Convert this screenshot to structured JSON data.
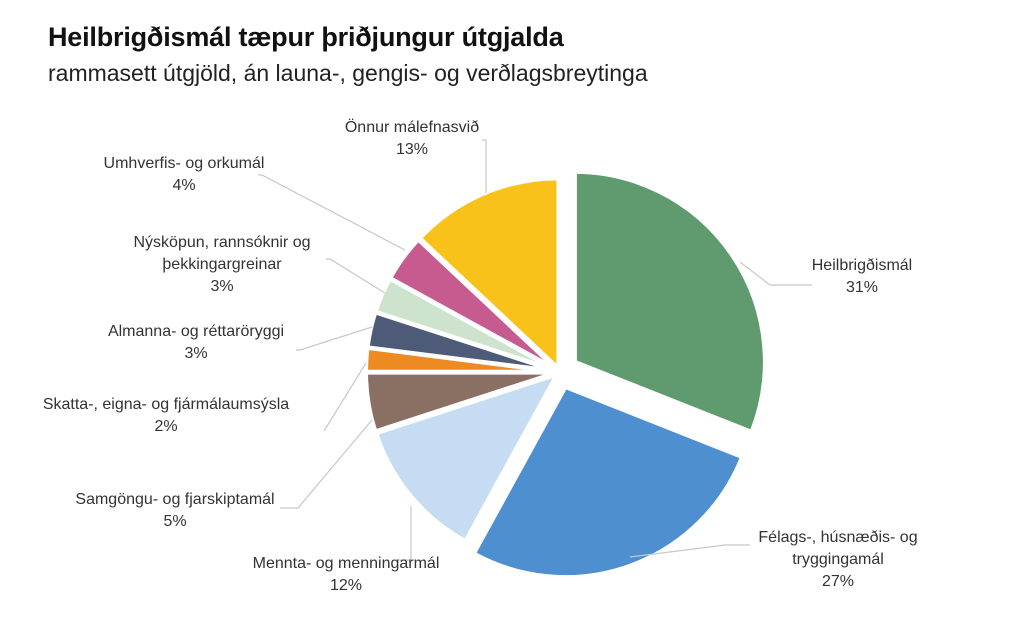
{
  "title": "Heilbrigðismál tæpur þriðjungur útgjalda",
  "subtitle": "rammasett útgjöld, án launa-, gengis- og verðlagsbreytinga",
  "chart_data": {
    "type": "pie",
    "title": "Heilbrigðismál tæpur þriðjungur útgjalda",
    "subtitle": "rammasett útgjöld, án launa-, gengis- og verðlagsbreytinga",
    "unit": "%",
    "slices": [
      {
        "label": "Heilbrigðismál",
        "value": 31,
        "display": "31%",
        "color": "#5f9b6e"
      },
      {
        "label": "Félags-, húsnæðis- og tryggingamál",
        "value": 27,
        "display": "27%",
        "color": "#4e8fcf"
      },
      {
        "label": "Mennta- og menningarmál",
        "value": 12,
        "display": "12%",
        "color": "#c6dcf3"
      },
      {
        "label": "Samgöngu- og fjarskiptamál",
        "value": 5,
        "display": "5%",
        "color": "#8a6f63"
      },
      {
        "label": "Skatta-, eigna- og fjármálaumsýsla",
        "value": 2,
        "display": "2%",
        "color": "#ee8a22"
      },
      {
        "label": "Almanna- og réttaröryggi",
        "value": 3,
        "display": "3%",
        "color": "#4d5b78"
      },
      {
        "label": "Nýsköpun, rannsóknir og þekkingargreinar",
        "value": 3,
        "display": "3%",
        "color": "#cde3cd"
      },
      {
        "label": "Umhverfis- og orkumál",
        "value": 4,
        "display": "4%",
        "color": "#c55b8e"
      },
      {
        "label": "Önnur málefnasvið",
        "value": 13,
        "display": "13%",
        "color": "#f9c21a"
      }
    ]
  }
}
